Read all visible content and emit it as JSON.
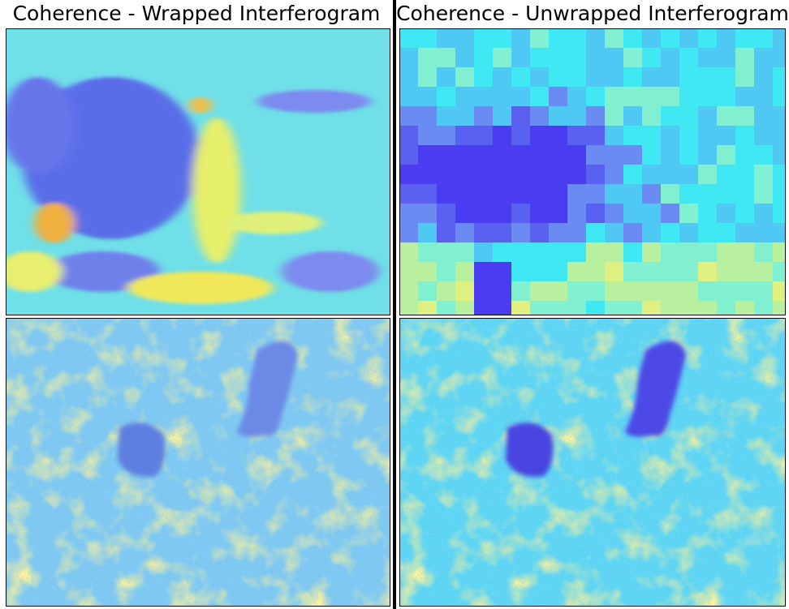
{
  "panels": [
    {
      "title": "Coherence - Wrapped Interferogram"
    },
    {
      "title": "Coherence - Unwrapped Interferogram"
    }
  ]
}
